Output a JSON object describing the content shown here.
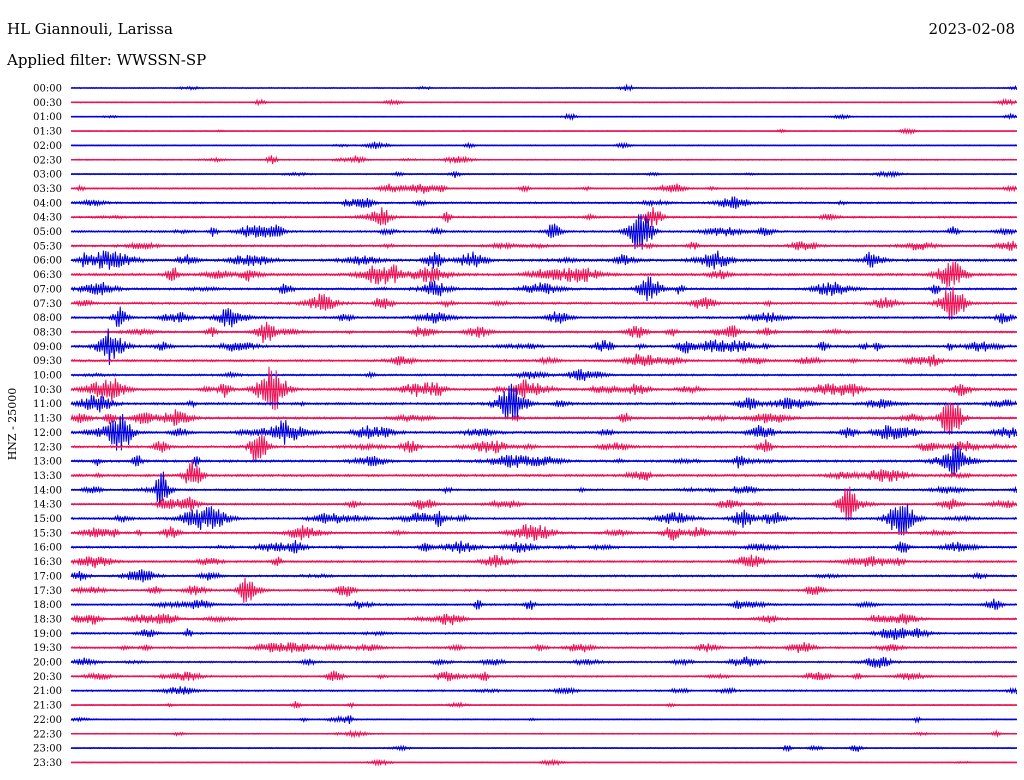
{
  "header": {
    "station": "HL Giannouli, Larissa",
    "date": "2023-02-08",
    "filter_label": "Applied filter: WWSSN-SP"
  },
  "colors": {
    "odd_trace": "#0000dd",
    "even_trace": "#ee1155",
    "background": "#ffffff",
    "text": "#000000"
  },
  "chart_data": {
    "type": "line",
    "subtype": "helicorder",
    "ylabel": "HNZ - 25000",
    "row_interval_minutes": 30,
    "row_labels": [
      "00:00",
      "00:30",
      "01:00",
      "01:30",
      "02:00",
      "02:30",
      "03:00",
      "03:30",
      "04:00",
      "04:30",
      "05:00",
      "05:30",
      "06:00",
      "06:30",
      "07:00",
      "07:30",
      "08:00",
      "08:30",
      "09:00",
      "09:30",
      "10:00",
      "10:30",
      "11:00",
      "11:30",
      "12:00",
      "12:30",
      "13:00",
      "13:30",
      "14:00",
      "14:30",
      "15:00",
      "15:30",
      "16:00",
      "16:30",
      "17:00",
      "17:30",
      "18:00",
      "18:30",
      "19:00",
      "19:30",
      "20:00",
      "20:30",
      "21:00",
      "21:30",
      "22:00",
      "22:30",
      "23:00",
      "23:30"
    ],
    "activity_level": [
      0.15,
      0.1,
      0.1,
      0.12,
      0.15,
      0.25,
      0.3,
      0.4,
      0.55,
      0.6,
      0.6,
      0.65,
      0.9,
      0.85,
      0.7,
      0.7,
      0.7,
      0.65,
      0.75,
      0.7,
      0.6,
      0.75,
      0.8,
      0.8,
      0.75,
      0.75,
      0.8,
      0.8,
      0.6,
      0.6,
      0.65,
      0.6,
      0.65,
      0.6,
      0.65,
      0.7,
      0.55,
      0.55,
      0.6,
      0.55,
      0.5,
      0.45,
      0.5,
      0.3,
      0.2,
      0.2,
      0.25,
      0.1
    ],
    "color_order": [
      "odd_trace",
      "even_trace"
    ]
  }
}
